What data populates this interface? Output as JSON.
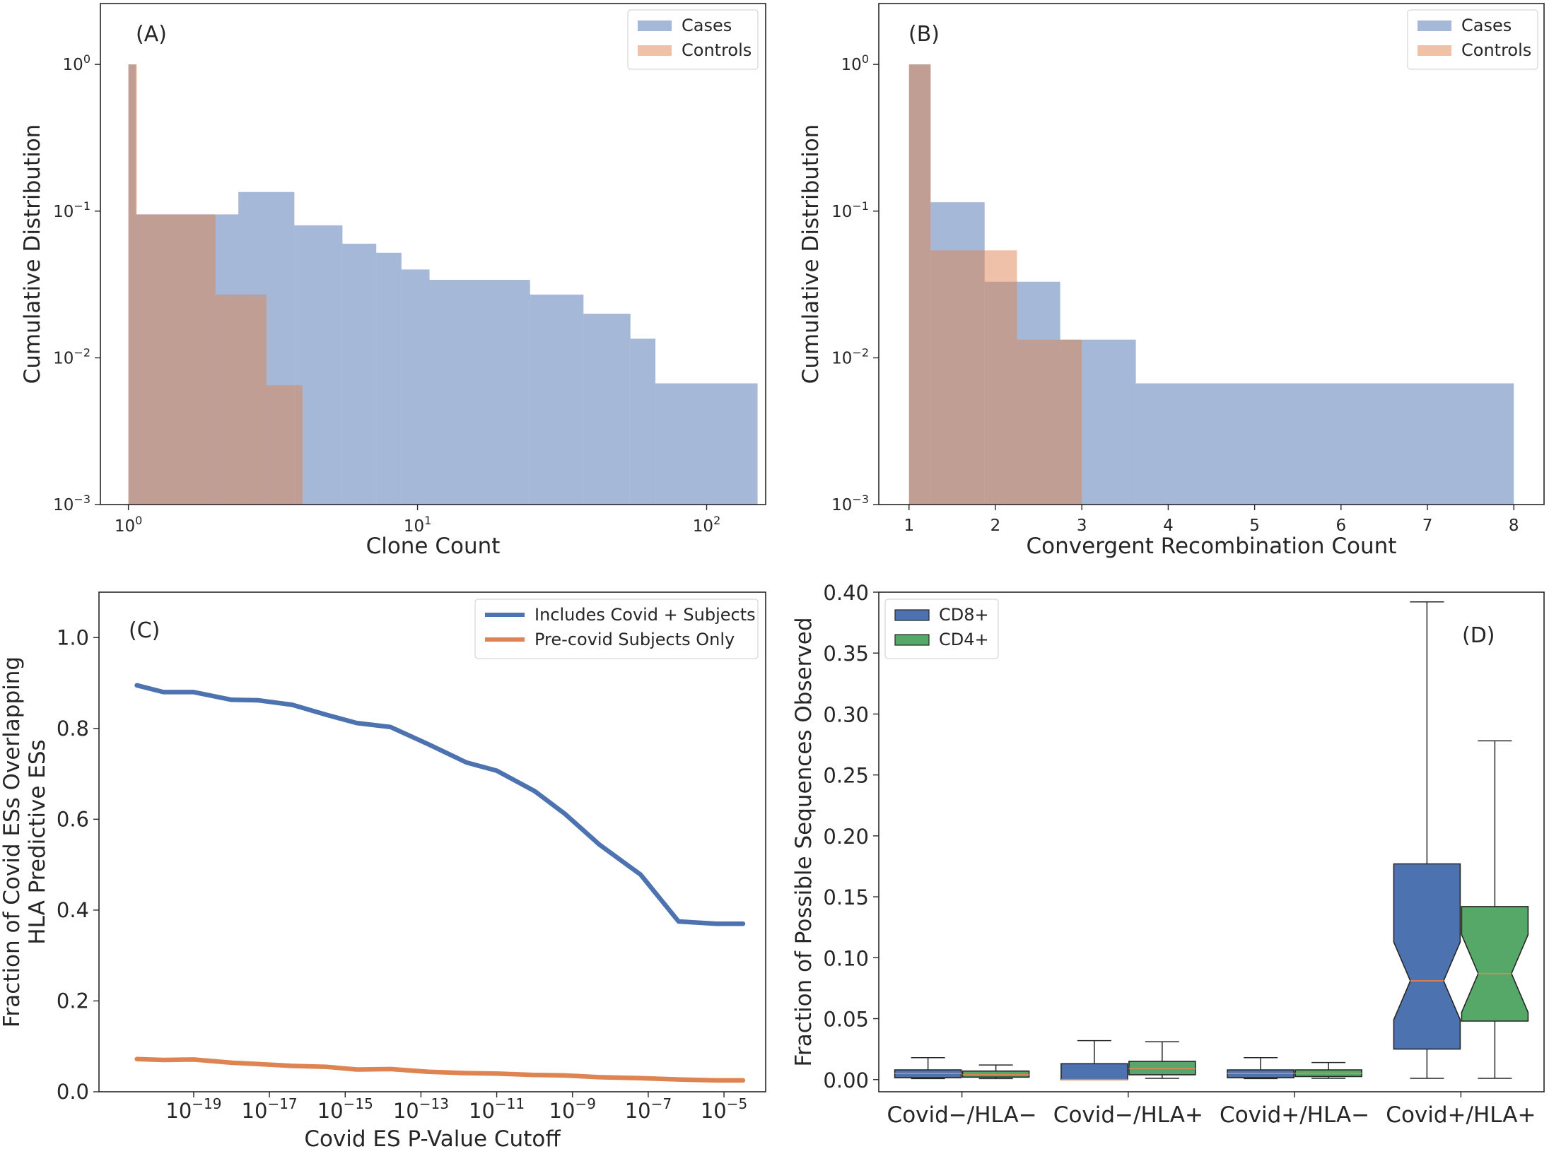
{
  "chart_data": [
    {
      "panel": "A",
      "type": "histogram",
      "panel_label": "(A)",
      "xlabel": "Clone Count",
      "ylabel": "Cumulative Distribution",
      "xscale": "log",
      "yscale": "log",
      "xlim": [
        0.8,
        160
      ],
      "ylim": [
        0.001,
        2.6
      ],
      "x_ticks": [
        {
          "v": 1,
          "base": "10",
          "exp": "0"
        },
        {
          "v": 10,
          "base": "10",
          "exp": "1"
        },
        {
          "v": 100,
          "base": "10",
          "exp": "2"
        }
      ],
      "y_ticks": [
        {
          "v": 0.001,
          "base": "10",
          "exp": "−3"
        },
        {
          "v": 0.01,
          "base": "10",
          "exp": "−2"
        },
        {
          "v": 0.1,
          "base": "10",
          "exp": "−1"
        },
        {
          "v": 1,
          "base": "10",
          "exp": "0"
        }
      ],
      "legend": {
        "position": "top-right"
      },
      "series": [
        {
          "name": "Cases",
          "color": "#4c72b0",
          "opacity": 0.5,
          "x": [
            1.0,
            1.06,
            2.4,
            3.75,
            5.5,
            7.2,
            8.8,
            11.0,
            24.5,
            37.5,
            54.5,
            66.5,
            150
          ],
          "values": [
            1.0,
            0.095,
            0.135,
            0.08,
            0.06,
            0.052,
            0.04,
            0.034,
            0.027,
            0.02,
            0.0135,
            0.0067
          ]
        },
        {
          "name": "Controls",
          "color": "#dd8452",
          "opacity": 0.5,
          "x": [
            1.0,
            1.07,
            2.0,
            3.0,
            4.0
          ],
          "values": [
            1.0,
            0.095,
            0.027,
            0.0065
          ]
        }
      ]
    },
    {
      "panel": "B",
      "type": "histogram",
      "panel_label": "(B)",
      "xlabel": "Convergent Recombination Count",
      "ylabel": "Cumulative Distribution",
      "xscale": "linear",
      "yscale": "log",
      "xlim": [
        0.65,
        8.35
      ],
      "ylim": [
        0.001,
        2.6
      ],
      "x_ticks": [
        1,
        2,
        3,
        4,
        5,
        6,
        7,
        8
      ],
      "y_ticks": [
        {
          "v": 0.001,
          "base": "10",
          "exp": "−3"
        },
        {
          "v": 0.01,
          "base": "10",
          "exp": "−2"
        },
        {
          "v": 0.1,
          "base": "10",
          "exp": "−1"
        },
        {
          "v": 1,
          "base": "10",
          "exp": "0"
        }
      ],
      "legend": {
        "position": "top-right"
      },
      "series": [
        {
          "name": "Cases",
          "color": "#4c72b0",
          "opacity": 0.5,
          "x": [
            1.0,
            1.25,
            1.875,
            2.75,
            3.625,
            4.5,
            8.0
          ],
          "values": [
            1.0,
            0.115,
            0.033,
            0.0133,
            0.0067,
            0.0067
          ]
        },
        {
          "name": "Controls",
          "color": "#dd8452",
          "opacity": 0.5,
          "x": [
            1.0,
            1.25,
            2.25,
            3.0
          ],
          "values": [
            1.0,
            0.054,
            0.0133
          ]
        }
      ]
    },
    {
      "panel": "C",
      "type": "line",
      "panel_label": "(C)",
      "xlabel": "Covid ES P-Value Cutoff",
      "ylabel_lines": [
        "Fraction of Covid ESs Overlapping",
        "HLA Predictive ESs"
      ],
      "xscale": "log",
      "yscale": "linear",
      "xlim_exp": [
        -21.5,
        -3.9
      ],
      "ylim": [
        0.0,
        1.1
      ],
      "x_ticks": [
        {
          "e": -19,
          "base": "10",
          "exp": "−19"
        },
        {
          "e": -17,
          "base": "10",
          "exp": "−17"
        },
        {
          "e": -15,
          "base": "10",
          "exp": "−15"
        },
        {
          "e": -13,
          "base": "10",
          "exp": "−13"
        },
        {
          "e": -11,
          "base": "10",
          "exp": "−11"
        },
        {
          "e": -9,
          "base": "10",
          "exp": "−9"
        },
        {
          "e": -7,
          "base": "10",
          "exp": "−7"
        },
        {
          "e": -5,
          "base": "10",
          "exp": "−5"
        }
      ],
      "y_ticks": [
        0.0,
        0.2,
        0.4,
        0.6,
        0.8,
        1.0
      ],
      "y_tick_labels": [
        "0.0",
        "0.2",
        "0.4",
        "0.6",
        "0.8",
        "1.0"
      ],
      "legend": {
        "position": "top-right"
      },
      "x_exp": [
        -20.5,
        -19.8,
        -19.0,
        -18.0,
        -17.3,
        -16.4,
        -15.5,
        -14.7,
        -13.8,
        -12.8,
        -11.8,
        -11.0,
        -10.0,
        -9.2,
        -8.3,
        -7.2,
        -6.2,
        -5.2,
        -4.5
      ],
      "series": [
        {
          "name": "Includes Covid + Subjects",
          "color": "#4c72b0",
          "values": [
            0.895,
            0.88,
            0.88,
            0.863,
            0.862,
            0.852,
            0.83,
            0.812,
            0.803,
            0.765,
            0.725,
            0.707,
            0.662,
            0.612,
            0.545,
            0.478,
            0.375,
            0.37,
            0.37
          ]
        },
        {
          "name": "Pre-covid Subjects Only",
          "color": "#dd8452",
          "values": [
            0.072,
            0.07,
            0.071,
            0.064,
            0.061,
            0.057,
            0.055,
            0.049,
            0.05,
            0.044,
            0.041,
            0.04,
            0.037,
            0.036,
            0.032,
            0.03,
            0.027,
            0.025,
            0.025
          ]
        }
      ]
    },
    {
      "panel": "D",
      "type": "box",
      "panel_label": "(D)",
      "xlabel": "",
      "ylabel": "Fraction of Possible Sequences Observed",
      "ylim": [
        -0.01,
        0.4
      ],
      "y_ticks": [
        0.0,
        0.05,
        0.1,
        0.15,
        0.2,
        0.25,
        0.3,
        0.35,
        0.4
      ],
      "y_tick_labels": [
        "0.00",
        "0.05",
        "0.10",
        "0.15",
        "0.20",
        "0.25",
        "0.30",
        "0.35",
        "0.40"
      ],
      "categories": [
        "Covid−/HLA−",
        "Covid−/HLA+",
        "Covid+/HLA−",
        "Covid+/HLA+"
      ],
      "legend": {
        "position": "top-left"
      },
      "series": [
        {
          "name": "CD8+",
          "color": "#4c72b0",
          "boxes": [
            {
              "whislo": 0.0008,
              "q1": 0.0015,
              "med": 0.005,
              "q3": 0.008,
              "whishi": 0.018
            },
            {
              "whislo": 0.0,
              "q1": 0.0,
              "med": 0.0,
              "q3": 0.013,
              "whishi": 0.032
            },
            {
              "whislo": 0.0008,
              "q1": 0.0015,
              "med": 0.005,
              "q3": 0.008,
              "whishi": 0.018
            },
            {
              "whislo": 0.001,
              "q1": 0.025,
              "med": 0.081,
              "q3": 0.177,
              "whishi": 0.392
            }
          ]
        },
        {
          "name": "CD4+",
          "color": "#55a868",
          "boxes": [
            {
              "whislo": 0.0008,
              "q1": 0.002,
              "med": 0.004,
              "q3": 0.007,
              "whishi": 0.012
            },
            {
              "whislo": 0.001,
              "q1": 0.004,
              "med": 0.009,
              "q3": 0.015,
              "whishi": 0.031
            },
            {
              "whislo": 0.001,
              "q1": 0.0025,
              "med": 0.005,
              "q3": 0.008,
              "whishi": 0.014
            },
            {
              "whislo": 0.001,
              "q1": 0.048,
              "med": 0.087,
              "q3": 0.142,
              "whishi": 0.278
            }
          ]
        }
      ]
    }
  ]
}
